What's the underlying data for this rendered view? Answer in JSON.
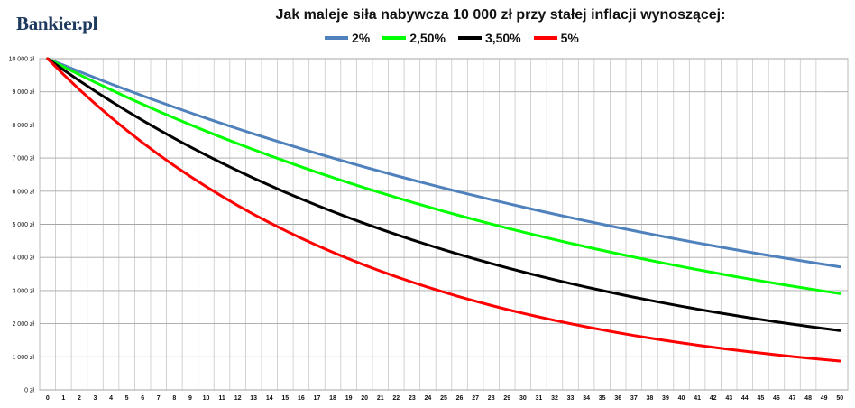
{
  "logo": "Bankier.pl",
  "chart_data": {
    "type": "line",
    "title": "Jak maleje siła nabywcza 10 000 zł przy stałej inflacji wynoszącej:",
    "x": [
      0,
      1,
      2,
      3,
      4,
      5,
      6,
      7,
      8,
      9,
      10,
      11,
      12,
      13,
      14,
      15,
      16,
      17,
      18,
      19,
      20,
      21,
      22,
      23,
      24,
      25,
      26,
      27,
      28,
      29,
      30,
      31,
      32,
      33,
      34,
      35,
      36,
      37,
      38,
      39,
      40,
      41,
      42,
      43,
      44,
      45,
      46,
      47,
      48,
      49,
      50
    ],
    "y_ticks": [
      "0 zł",
      "1 000 zł",
      "2 000 zł",
      "3 000 zł",
      "4 000 zł",
      "5 000 zł",
      "6 000 zł",
      "7 000 zł",
      "8 000 zł",
      "9 000 zł",
      "10 000 zł"
    ],
    "ylim": [
      0,
      10000
    ],
    "grid": true,
    "legend_position": "top",
    "series": [
      {
        "name": "2%",
        "color": "#4f81bd",
        "rate": 0.02,
        "values": [
          10000,
          9804,
          9612,
          9423,
          9238,
          9057,
          8880,
          8706,
          8535,
          8368,
          8203,
          8043,
          7885,
          7730,
          7579,
          7430,
          7284,
          7142,
          7002,
          6864,
          6730,
          6598,
          6468,
          6342,
          6217,
          6095,
          5976,
          5859,
          5744,
          5631,
          5521,
          5412,
          5306,
          5202,
          5100,
          5000,
          4902,
          4806,
          4712,
          4619,
          4529,
          4440,
          4353,
          4268,
          4184,
          4102,
          4022,
          3943,
          3865,
          3790,
          3715
        ]
      },
      {
        "name": "2,50%",
        "color": "#00ff00",
        "rate": 0.025,
        "values": [
          10000,
          9756,
          9518,
          9286,
          9060,
          8839,
          8623,
          8413,
          8207,
          8007,
          7812,
          7621,
          7436,
          7254,
          7077,
          6905,
          6736,
          6572,
          6412,
          6255,
          6103,
          5954,
          5809,
          5667,
          5529,
          5394,
          5262,
          5134,
          5009,
          4887,
          4767,
          4651,
          4538,
          4427,
          4319,
          4214,
          4111,
          4011,
          3913,
          3817,
          3724,
          3633,
          3545,
          3458,
          3374,
          3292,
          3211,
          3133,
          3057,
          2982,
          2909
        ]
      },
      {
        "name": "3,50%",
        "color": "#000000",
        "rate": 0.035,
        "values": [
          10000,
          9662,
          9335,
          9019,
          8714,
          8420,
          8135,
          7860,
          7594,
          7337,
          7089,
          6849,
          6618,
          6394,
          6178,
          5969,
          5767,
          5572,
          5384,
          5202,
          5026,
          4856,
          4692,
          4533,
          4380,
          4231,
          4088,
          3950,
          3817,
          3687,
          3563,
          3442,
          3326,
          3213,
          3105,
          3000,
          2898,
          2800,
          2706,
          2614,
          2526,
          2440,
          2358,
          2278,
          2201,
          2127,
          2055,
          1985,
          1918,
          1853,
          1791
        ]
      },
      {
        "name": "5%",
        "color": "#ff0000",
        "rate": 0.05,
        "values": [
          10000,
          9524,
          9070,
          8638,
          8227,
          7835,
          7462,
          7107,
          6768,
          6446,
          6139,
          5847,
          5568,
          5303,
          5051,
          4810,
          4581,
          4363,
          4155,
          3957,
          3769,
          3589,
          3418,
          3256,
          3101,
          2953,
          2812,
          2678,
          2551,
          2429,
          2314,
          2204,
          2099,
          1999,
          1904,
          1813,
          1727,
          1644,
          1566,
          1491,
          1420,
          1353,
          1288,
          1227,
          1169,
          1113,
          1060,
          1009,
          961,
          916,
          872
        ]
      }
    ]
  }
}
